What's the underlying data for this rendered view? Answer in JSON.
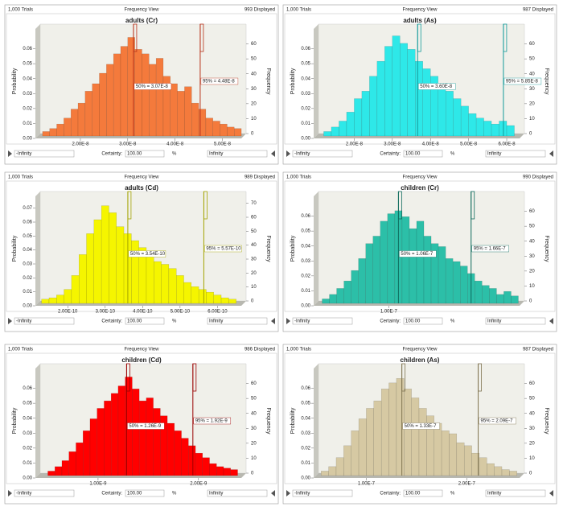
{
  "chart_data": [
    {
      "type": "histogram",
      "title": "adults (Cr)",
      "trials": "1,000 Trials",
      "view": "Frequency View",
      "displayed": "993 Displayed",
      "ylabel": "Probability",
      "y2label": "Frequency",
      "color": "#f47a3c",
      "marker_color": "#b8321a",
      "bins": [
        1.2e-08,
        1.35e-08,
        1.5e-08,
        1.65e-08,
        1.8e-08,
        1.95e-08,
        2.1e-08,
        2.25e-08,
        2.4e-08,
        2.55e-08,
        2.7e-08,
        2.85e-08,
        3e-08,
        3.15e-08,
        3.3e-08,
        3.45e-08,
        3.6e-08,
        3.75e-08,
        3.9e-08,
        4.05e-08,
        4.2e-08,
        4.35e-08,
        4.5e-08,
        4.65e-08,
        4.8e-08,
        4.95e-08,
        5.1e-08,
        5.25e-08,
        5.4e-08
      ],
      "values": [
        0.003,
        0.005,
        0.008,
        0.012,
        0.018,
        0.022,
        0.03,
        0.035,
        0.042,
        0.048,
        0.055,
        0.06,
        0.066,
        0.058,
        0.055,
        0.048,
        0.052,
        0.04,
        0.035,
        0.03,
        0.033,
        0.022,
        0.018,
        0.012,
        0.01,
        0.008,
        0.006,
        0.005
      ],
      "xlim": [
        1.1e-08,
        5.45e-08
      ],
      "xticks": [
        {
          "value": 2e-08,
          "label": "2.00E-8"
        },
        {
          "value": 3e-08,
          "label": "3.00E-8"
        },
        {
          "value": 4e-08,
          "label": "4.00E-8"
        },
        {
          "value": 5e-08,
          "label": "5.00E-8"
        }
      ],
      "ylim": [
        0,
        0.07
      ],
      "yticks": [
        {
          "value": 0,
          "label": "0.00"
        },
        0.01,
        0.02,
        0.03,
        0.04,
        0.05,
        0.06
      ],
      "y2lim": [
        0,
        70
      ],
      "y2ticks": [
        0,
        10,
        20,
        30,
        40,
        50,
        60
      ],
      "markers": [
        {
          "value": 3.07e-08,
          "label": "50% = 3.07E-8"
        },
        {
          "value": 4.48e-08,
          "label": "95% = 4.48E-8"
        }
      ],
      "lower": "-Infinity",
      "certainty_label": "Certainty:",
      "certainty": "100.00",
      "certainty_unit": "%",
      "upper": "Infinity"
    },
    {
      "type": "histogram",
      "title": "adults (As)",
      "trials": "1,000 Trials",
      "view": "Frequency View",
      "displayed": "987 Displayed",
      "ylabel": "Probability",
      "y2label": "Frequency",
      "color": "#2ee8e8",
      "marker_color": "#129a9a",
      "bins": [
        1.2e-08,
        1.4e-08,
        1.6e-08,
        1.8e-08,
        2e-08,
        2.2e-08,
        2.4e-08,
        2.6e-08,
        2.8e-08,
        3e-08,
        3.2e-08,
        3.4e-08,
        3.6e-08,
        3.8e-08,
        4e-08,
        4.2e-08,
        4.4e-08,
        4.6e-08,
        4.8e-08,
        5e-08,
        5.2e-08,
        5.4e-08,
        5.6e-08,
        5.8e-08,
        6e-08,
        6.2e-08
      ],
      "values": [
        0.003,
        0.006,
        0.01,
        0.016,
        0.025,
        0.03,
        0.04,
        0.05,
        0.06,
        0.067,
        0.062,
        0.058,
        0.05,
        0.045,
        0.04,
        0.035,
        0.03,
        0.025,
        0.02,
        0.015,
        0.012,
        0.01,
        0.008,
        0.01,
        0.007
      ],
      "xlim": [
        1e-08,
        6.4e-08
      ],
      "xticks": [
        {
          "value": 2e-08,
          "label": "2.00E-8"
        },
        {
          "value": 3e-08,
          "label": "3.00E-8"
        },
        {
          "value": 4e-08,
          "label": "4.00E-8"
        },
        {
          "value": 5e-08,
          "label": "5.00E-8"
        },
        {
          "value": 6e-08,
          "label": "6.00E-8"
        }
      ],
      "ylim": [
        0,
        0.07
      ],
      "yticks": [
        {
          "value": 0,
          "label": "0.00"
        },
        0.01,
        0.02,
        0.03,
        0.04,
        0.05,
        0.06
      ],
      "y2lim": [
        0,
        70
      ],
      "y2ticks": [
        0,
        10,
        20,
        30,
        40,
        50,
        60
      ],
      "markers": [
        {
          "value": 3.6e-08,
          "label": "50% = 3.60E-8"
        },
        {
          "value": 5.85e-08,
          "label": "95% = 5.85E-8"
        }
      ],
      "lower": "-Infinity",
      "certainty_label": "Certainty:",
      "certainty": "100.00",
      "certainty_unit": "%",
      "upper": "Infinity"
    },
    {
      "type": "histogram",
      "title": "adults (Cd)",
      "trials": "1,000 Trials",
      "view": "Frequency View",
      "displayed": "989 Displayed",
      "ylabel": "Probability",
      "y2label": "Frequency",
      "color": "#f5f500",
      "marker_color": "#a3a300",
      "bins": [
        1.3e-10,
        1.5e-10,
        1.7e-10,
        1.9e-10,
        2.1e-10,
        2.3e-10,
        2.5e-10,
        2.7e-10,
        2.9e-10,
        3.1e-10,
        3.3e-10,
        3.5e-10,
        3.7e-10,
        3.9e-10,
        4.1e-10,
        4.3e-10,
        4.5e-10,
        4.7e-10,
        4.9e-10,
        5.1e-10,
        5.3e-10,
        5.5e-10,
        5.7e-10,
        5.9e-10,
        6.1e-10,
        6.3e-10,
        6.5e-10
      ],
      "values": [
        0.003,
        0.004,
        0.006,
        0.01,
        0.02,
        0.035,
        0.05,
        0.06,
        0.07,
        0.065,
        0.055,
        0.05,
        0.045,
        0.04,
        0.035,
        0.03,
        0.028,
        0.025,
        0.02,
        0.015,
        0.012,
        0.01,
        0.008,
        0.006,
        0.004,
        0.003
      ],
      "xlim": [
        1.2e-10,
        6.7e-10
      ],
      "xticks": [
        {
          "value": 2e-10,
          "label": "2.00E-10"
        },
        {
          "value": 3e-10,
          "label": "3.00E-10"
        },
        {
          "value": 4e-10,
          "label": "4.00E-10"
        },
        {
          "value": 5e-10,
          "label": "5.00E-10"
        },
        {
          "value": 6e-10,
          "label": "6.00E-10"
        }
      ],
      "ylim": [
        0,
        0.075
      ],
      "yticks": [
        {
          "value": 0,
          "label": "0.00"
        },
        0.01,
        0.02,
        0.03,
        0.04,
        0.05,
        0.06,
        0.07
      ],
      "y2lim": [
        0,
        75
      ],
      "y2ticks": [
        0,
        10,
        20,
        30,
        40,
        50,
        60,
        70
      ],
      "markers": [
        {
          "value": 3.54e-10,
          "label": "50% = 3.54E-10"
        },
        {
          "value": 5.57e-10,
          "label": "95% = 5.57E-10"
        }
      ],
      "lower": "-Infinity",
      "certainty_label": "Certainty:",
      "certainty": "100.00",
      "certainty_unit": "%",
      "upper": "Infinity"
    },
    {
      "type": "histogram",
      "title": "children (Cr)",
      "trials": "1,000 Trials",
      "view": "Frequency View",
      "displayed": "990 Displayed",
      "ylabel": "Probability",
      "y2label": "Frequency",
      "color": "#2cbfa8",
      "marker_color": "#0d6a5c",
      "bins": [
        4.5e-08,
        5.1e-08,
        5.7e-08,
        6.3e-08,
        6.9e-08,
        7.5e-08,
        8.1e-08,
        8.7e-08,
        9.3e-08,
        9.9e-08,
        1.05e-07,
        1.11e-07,
        1.17e-07,
        1.23e-07,
        1.29e-07,
        1.35e-07,
        1.41e-07,
        1.47e-07,
        1.53e-07,
        1.59e-07,
        1.65e-07,
        1.71e-07,
        1.77e-07,
        1.83e-07,
        1.89e-07,
        1.95e-07,
        2.01e-07,
        2.07e-07
      ],
      "values": [
        0.003,
        0.006,
        0.01,
        0.015,
        0.022,
        0.03,
        0.04,
        0.045,
        0.055,
        0.06,
        0.062,
        0.058,
        0.05,
        0.055,
        0.045,
        0.04,
        0.038,
        0.03,
        0.028,
        0.025,
        0.02,
        0.015,
        0.012,
        0.01,
        0.006,
        0.008,
        0.005
      ],
      "xlim": [
        4e-08,
        2.1e-07
      ],
      "xticks": [
        {
          "value": 1e-07,
          "label": "1.00E-7"
        }
      ],
      "ylim": [
        0,
        0.07
      ],
      "yticks": [
        {
          "value": 0,
          "label": "0.00"
        },
        0.01,
        0.02,
        0.03,
        0.04,
        0.05,
        0.06
      ],
      "y2lim": [
        0,
        70
      ],
      "y2ticks": [
        0,
        10,
        20,
        30,
        40,
        50,
        60
      ],
      "markers": [
        {
          "value": 1.06e-07,
          "label": "50% = 1.06E-7"
        },
        {
          "value": 1.66e-07,
          "label": "95% = 1.66E-7"
        }
      ],
      "lower": "-Infinity",
      "certainty_label": "Certainty:",
      "certainty": "100.00",
      "certainty_unit": "%",
      "upper": "Infinity"
    },
    {
      "type": "histogram",
      "title": "children (Cd)",
      "trials": "1,000 Trials",
      "view": "Frequency View",
      "displayed": "986 Displayed",
      "ylabel": "Probability",
      "y2label": "Frequency",
      "color": "#ff0000",
      "marker_color": "#9a0000",
      "bins": [
        5e-10,
        5.7e-10,
        6.4e-10,
        7.1e-10,
        7.8e-10,
        8.5e-10,
        9.2e-10,
        9.9e-10,
        1.06e-09,
        1.13e-09,
        1.2e-09,
        1.27e-09,
        1.34e-09,
        1.41e-09,
        1.48e-09,
        1.55e-09,
        1.62e-09,
        1.69e-09,
        1.76e-09,
        1.83e-09,
        1.9e-09,
        1.97e-09,
        2.04e-09,
        2.11e-09,
        2.18e-09,
        2.25e-09,
        2.32e-09,
        2.39e-09
      ],
      "values": [
        0.003,
        0.006,
        0.01,
        0.016,
        0.022,
        0.03,
        0.038,
        0.045,
        0.05,
        0.055,
        0.06,
        0.066,
        0.058,
        0.05,
        0.052,
        0.045,
        0.04,
        0.035,
        0.03,
        0.025,
        0.02,
        0.015,
        0.012,
        0.008,
        0.006,
        0.005,
        0.004
      ],
      "xlim": [
        4e-10,
        2.45e-09
      ],
      "xticks": [
        {
          "value": 1e-09,
          "label": "1.00E-9"
        },
        {
          "value": 2e-09,
          "label": "2.00E-9"
        }
      ],
      "ylim": [
        0,
        0.07
      ],
      "yticks": [
        {
          "value": 0,
          "label": "0.00"
        },
        0.01,
        0.02,
        0.03,
        0.04,
        0.05,
        0.06
      ],
      "y2lim": [
        0,
        70
      ],
      "y2ticks": [
        0,
        10,
        20,
        30,
        40,
        50,
        60
      ],
      "markers": [
        {
          "value": 1.26e-09,
          "label": "50% = 1.26E-9"
        },
        {
          "value": 1.92e-09,
          "label": "95% = 1.92E-9"
        }
      ],
      "lower": "-Infinity",
      "certainty_label": "Certainty:",
      "certainty": "100.00",
      "certainty_unit": "%",
      "upper": "Infinity"
    },
    {
      "type": "histogram",
      "title": "children (As)",
      "trials": "1,000 Trials",
      "view": "Frequency View",
      "displayed": "987 Displayed",
      "ylabel": "Probability",
      "y2label": "Frequency",
      "color": "#d6c9a3",
      "marker_color": "#7f7350",
      "bins": [
        5.5e-08,
        6.25e-08,
        7e-08,
        7.75e-08,
        8.5e-08,
        9.25e-08,
        1e-07,
        1.075e-07,
        1.15e-07,
        1.225e-07,
        1.3e-07,
        1.375e-07,
        1.45e-07,
        1.525e-07,
        1.6e-07,
        1.675e-07,
        1.75e-07,
        1.825e-07,
        1.9e-07,
        1.975e-07,
        2.05e-07,
        2.125e-07,
        2.2e-07,
        2.275e-07,
        2.35e-07,
        2.425e-07,
        2.5e-07
      ],
      "values": [
        0.003,
        0.006,
        0.012,
        0.02,
        0.03,
        0.038,
        0.045,
        0.05,
        0.058,
        0.062,
        0.065,
        0.058,
        0.052,
        0.045,
        0.04,
        0.035,
        0.03,
        0.028,
        0.022,
        0.02,
        0.015,
        0.012,
        0.008,
        0.006,
        0.004,
        0.003
      ],
      "xlim": [
        5e-08,
        2.55e-07
      ],
      "xticks": [
        {
          "value": 1e-07,
          "label": "1.00E-7"
        },
        {
          "value": 2e-07,
          "label": "2.00E-7"
        }
      ],
      "ylim": [
        0,
        0.07
      ],
      "yticks": [
        {
          "value": 0,
          "label": "0.00"
        },
        0.01,
        0.02,
        0.03,
        0.04,
        0.05,
        0.06
      ],
      "y2lim": [
        0,
        70
      ],
      "y2ticks": [
        0,
        10,
        20,
        30,
        40,
        50,
        60
      ],
      "markers": [
        {
          "value": 1.33e-07,
          "label": "50% = 1.33E-7"
        },
        {
          "value": 2.09e-07,
          "label": "95% = 2.09E-7"
        }
      ],
      "lower": "-Infinity",
      "certainty_label": "Certainty:",
      "certainty": "100.00",
      "certainty_unit": "%",
      "upper": "Infinity"
    }
  ]
}
